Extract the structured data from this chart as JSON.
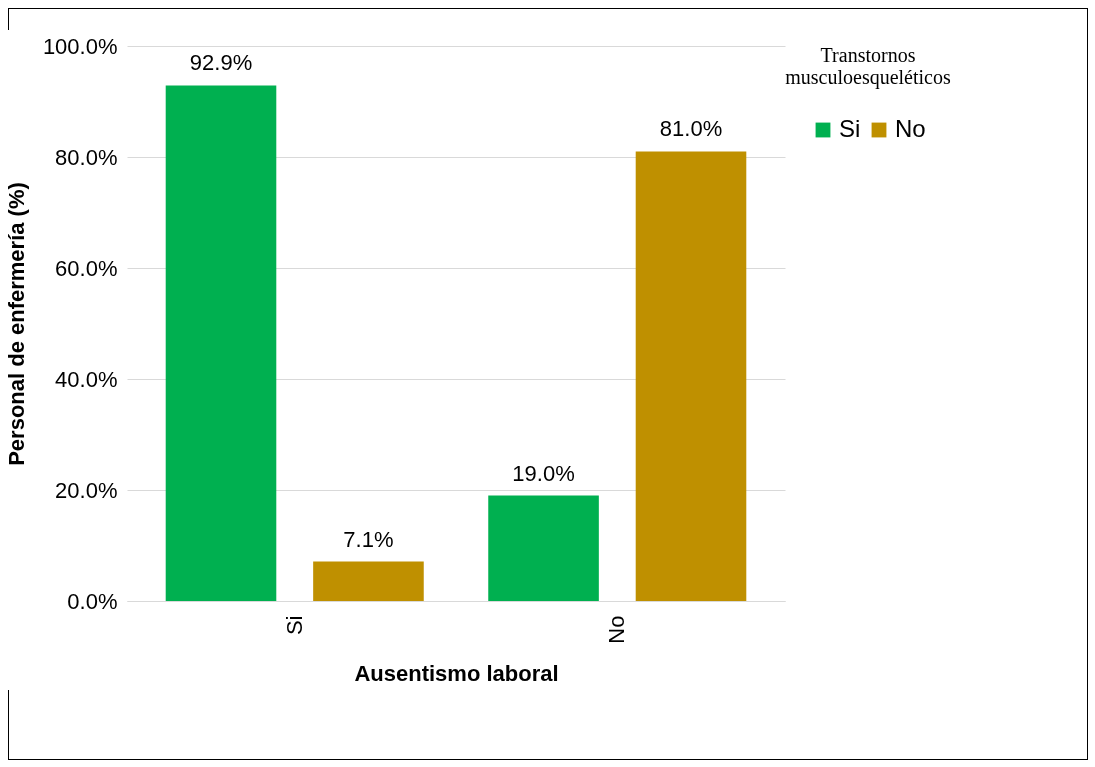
{
  "chart_data": {
    "type": "bar",
    "xlabel": "Ausentismo laboral",
    "ylabel": "Personal de enfermería (%)",
    "legend_title": "Transtornos musculoesqueléticos",
    "categories": [
      "Si",
      "No"
    ],
    "series": [
      {
        "name": "Si",
        "color": "#00b050",
        "values": [
          92.9,
          19.0
        ],
        "value_labels": [
          "92.9%",
          "19.0%"
        ]
      },
      {
        "name": "No",
        "color": "#bf9000",
        "values": [
          7.1,
          81.0
        ],
        "value_labels": [
          "7.1%",
          "81.0%"
        ]
      }
    ],
    "ylim": [
      0,
      100
    ],
    "yticks": [
      {
        "value": 0,
        "label": "0.0%"
      },
      {
        "value": 20,
        "label": "20.0%"
      },
      {
        "value": 40,
        "label": "40.0%"
      },
      {
        "value": 60,
        "label": "60.0%"
      },
      {
        "value": 80,
        "label": "80.0%"
      },
      {
        "value": 100,
        "label": "100.0%"
      }
    ],
    "grid": "y",
    "legend": "right"
  }
}
